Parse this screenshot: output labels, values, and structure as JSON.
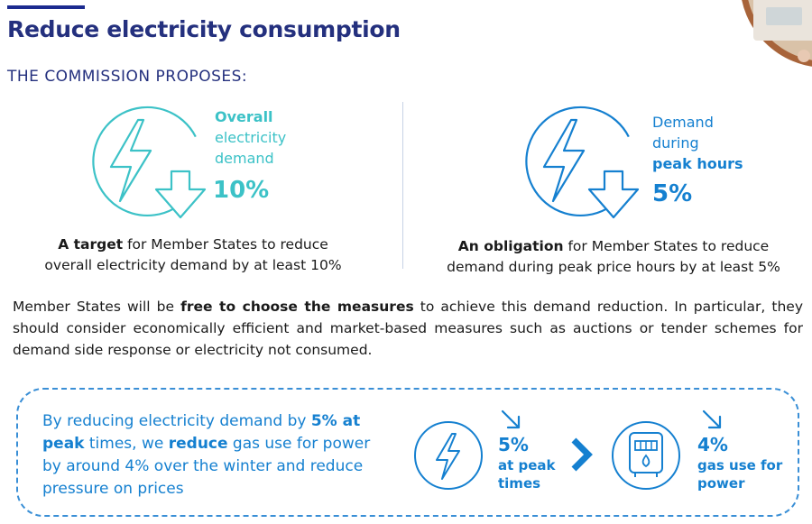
{
  "title": "Reduce electricity consumption",
  "section_heading": "THE COMMISSION PROPOSES:",
  "left_stat": {
    "line1": "Overall",
    "line2": "electricity",
    "line3": "demand",
    "value": "10%",
    "caption_bold": "A target",
    "caption_rest": " for Member States to reduce",
    "caption_line2": "overall electricity demand by at least 10%"
  },
  "right_stat": {
    "line1": "Demand",
    "line2": "during",
    "line3": "peak hours",
    "value": "5%",
    "caption_bold": "An obligation",
    "caption_rest": " for Member States to reduce",
    "caption_line2": "demand during peak price hours by at least 5%"
  },
  "paragraph": {
    "part1": "Member States will be ",
    "bold": "free to choose the measures",
    "part2": " to achieve this demand reduction. In particular, they should consider economically efficient and market-based measures such as auctions or tender schemes for demand side response or electricity not consumed."
  },
  "callout": {
    "t1": "By reducing electricity demand by ",
    "b1": "5% at peak",
    "t2": " times, we ",
    "b2": "reduce",
    "t3": " gas use for power by around 4% over the winter and reduce pressure on prices",
    "stat1_value": "5%",
    "stat1_line1": "at peak",
    "stat1_line2": "times",
    "stat2_value": "4%",
    "stat2_line1": "gas use for",
    "stat2_line2": "power"
  },
  "colors": {
    "title": "#24307e",
    "teal": "#3cc2c7",
    "blue": "#1580d0"
  }
}
